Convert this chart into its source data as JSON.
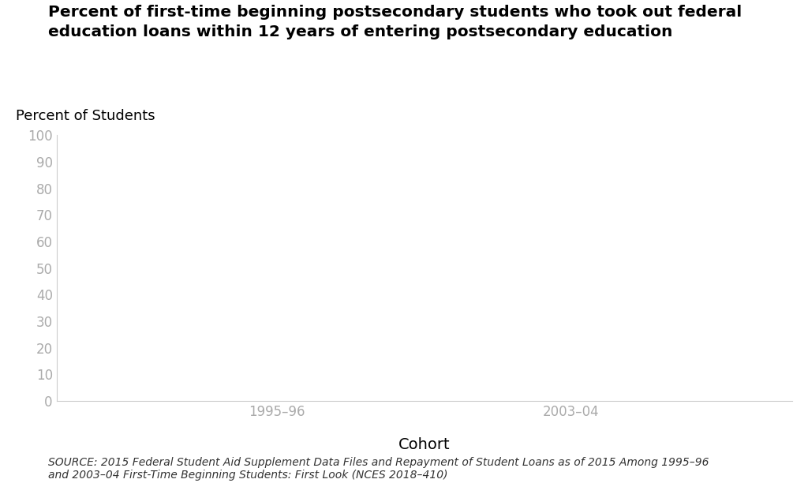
{
  "title_line1": "Percent of first-time beginning postsecondary students who took out federal",
  "title_line2": "education loans within 12 years of entering postsecondary education",
  "ylabel": "Percent of Students",
  "xlabel": "Cohort",
  "xtick_labels": [
    "1995–96",
    "2003–04"
  ],
  "xtick_positions": [
    0.3,
    0.7
  ],
  "ytick_values": [
    0,
    10,
    20,
    30,
    40,
    50,
    60,
    70,
    80,
    90,
    100
  ],
  "ylim": [
    0,
    100
  ],
  "xlim": [
    0,
    1
  ],
  "source_text": "SOURCE: 2015 Federal Student Aid Supplement Data Files and Repayment of Student Loans as of 2015 Among 1995–96\nand 2003–04 First-Time Beginning Students: First Look (NCES 2018–410)",
  "background_color": "#ffffff",
  "title_fontsize": 14.5,
  "ylabel_fontsize": 13,
  "xlabel_fontsize": 14,
  "ytick_fontsize": 12,
  "xtick_fontsize": 12,
  "source_fontsize": 10,
  "title_color": "#000000",
  "ylabel_color": "#000000",
  "xlabel_color": "#000000",
  "ytick_color": "#aaaaaa",
  "xtick_color": "#aaaaaa",
  "spine_color": "#cccccc"
}
